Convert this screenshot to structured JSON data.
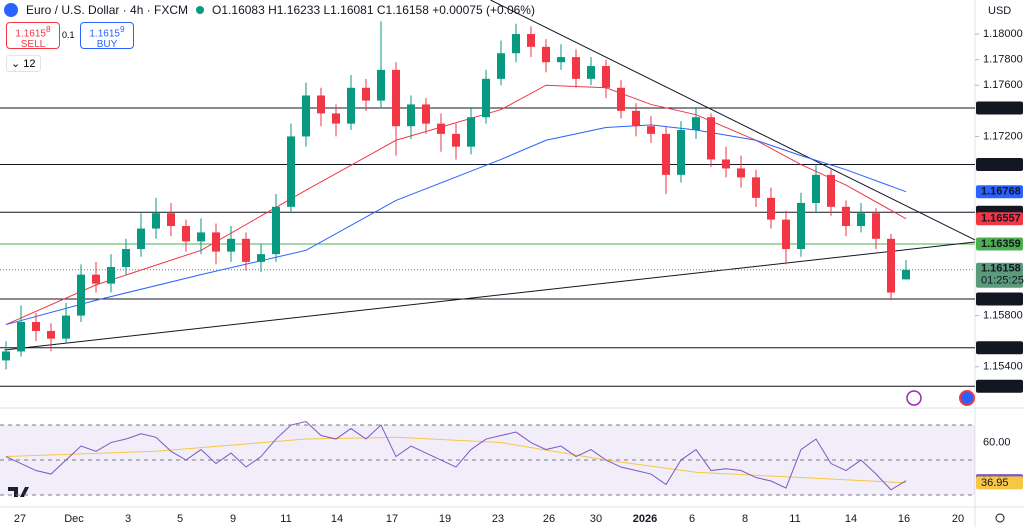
{
  "header": {
    "symbol": "Euro / U.S. Dollar · 4h · FXCM",
    "ohlc_text": "O1.16083 H1.16233 L1.16081 C1.16158 +0.00075 (+0.06%)",
    "sell_price": "1.1615",
    "sell_pip": "8",
    "sell_label": "SELL",
    "spread": "0.1",
    "buy_price": "1.1615",
    "buy_pip": "9",
    "buy_label": "BUY",
    "interval_count": "12",
    "currency": "USD",
    "countdown": "01:25:25"
  },
  "chart_data": {
    "type": "candlestick",
    "up_color": "#089981",
    "down_color": "#f23645",
    "ylim": [
      1.15078,
      1.18266
    ],
    "yticks": [
      {
        "value": 1.18,
        "label": "1.18000"
      },
      {
        "value": 1.178,
        "label": "1.17800"
      },
      {
        "value": 1.176,
        "label": "1.17600"
      },
      {
        "value": 1.172,
        "label": "1.17200"
      },
      {
        "value": 1.158,
        "label": "1.15800"
      },
      {
        "value": 1.154,
        "label": "1.15400"
      }
    ],
    "time_labels": [
      "27",
      "Dec",
      "3",
      "5",
      "9",
      "11",
      "14",
      "17",
      "19",
      "23",
      "26",
      "30",
      "2026",
      "6",
      "8",
      "11",
      "14",
      "16",
      "20"
    ],
    "candles": [
      [
        1.1545,
        1.156,
        1.1538,
        1.1552
      ],
      [
        1.1552,
        1.1588,
        1.1548,
        1.1575
      ],
      [
        1.1575,
        1.1582,
        1.156,
        1.1568
      ],
      [
        1.1568,
        1.1574,
        1.1552,
        1.1562
      ],
      [
        1.1562,
        1.159,
        1.1558,
        1.158
      ],
      [
        1.158,
        1.162,
        1.1575,
        1.1612
      ],
      [
        1.1612,
        1.1622,
        1.1598,
        1.1605
      ],
      [
        1.1605,
        1.1628,
        1.1598,
        1.1618
      ],
      [
        1.1618,
        1.164,
        1.1612,
        1.1632
      ],
      [
        1.1632,
        1.166,
        1.1626,
        1.1648
      ],
      [
        1.1648,
        1.1672,
        1.164,
        1.166
      ],
      [
        1.166,
        1.1668,
        1.1642,
        1.165
      ],
      [
        1.165,
        1.1655,
        1.163,
        1.1638
      ],
      [
        1.1638,
        1.1656,
        1.1628,
        1.1645
      ],
      [
        1.1645,
        1.1652,
        1.162,
        1.163
      ],
      [
        1.163,
        1.165,
        1.1622,
        1.164
      ],
      [
        1.164,
        1.1645,
        1.1615,
        1.1622
      ],
      [
        1.1622,
        1.1636,
        1.1614,
        1.1628
      ],
      [
        1.1628,
        1.1675,
        1.1622,
        1.1665
      ],
      [
        1.1665,
        1.173,
        1.166,
        1.172
      ],
      [
        1.172,
        1.1762,
        1.1712,
        1.1752
      ],
      [
        1.1752,
        1.1758,
        1.1728,
        1.1738
      ],
      [
        1.1738,
        1.1745,
        1.172,
        1.173
      ],
      [
        1.173,
        1.1768,
        1.1725,
        1.1758
      ],
      [
        1.1758,
        1.1765,
        1.174,
        1.1748
      ],
      [
        1.1748,
        1.181,
        1.1742,
        1.1772
      ],
      [
        1.1772,
        1.1778,
        1.1705,
        1.1728
      ],
      [
        1.1728,
        1.1752,
        1.1718,
        1.1745
      ],
      [
        1.1745,
        1.175,
        1.1722,
        1.173
      ],
      [
        1.173,
        1.1738,
        1.1708,
        1.1722
      ],
      [
        1.1722,
        1.173,
        1.1702,
        1.1712
      ],
      [
        1.1712,
        1.1742,
        1.1706,
        1.1735
      ],
      [
        1.1735,
        1.1772,
        1.173,
        1.1765
      ],
      [
        1.1765,
        1.1795,
        1.176,
        1.1785
      ],
      [
        1.1785,
        1.1808,
        1.1778,
        1.18
      ],
      [
        1.18,
        1.1806,
        1.1782,
        1.179
      ],
      [
        1.179,
        1.1796,
        1.177,
        1.1778
      ],
      [
        1.1778,
        1.1792,
        1.1772,
        1.1782
      ],
      [
        1.1782,
        1.1788,
        1.1758,
        1.1765
      ],
      [
        1.1765,
        1.1782,
        1.176,
        1.1775
      ],
      [
        1.1775,
        1.178,
        1.175,
        1.1758
      ],
      [
        1.1758,
        1.1764,
        1.1734,
        1.174
      ],
      [
        1.174,
        1.1746,
        1.172,
        1.1728
      ],
      [
        1.1728,
        1.1736,
        1.1715,
        1.1722
      ],
      [
        1.1722,
        1.1728,
        1.1675,
        1.169
      ],
      [
        1.169,
        1.1732,
        1.1684,
        1.1725
      ],
      [
        1.1725,
        1.1742,
        1.1718,
        1.1735
      ],
      [
        1.1735,
        1.1738,
        1.1696,
        1.1702
      ],
      [
        1.1702,
        1.1712,
        1.1688,
        1.1695
      ],
      [
        1.1695,
        1.1705,
        1.168,
        1.1688
      ],
      [
        1.1688,
        1.1694,
        1.1665,
        1.1672
      ],
      [
        1.1672,
        1.168,
        1.1648,
        1.1655
      ],
      [
        1.1655,
        1.1662,
        1.162,
        1.1632
      ],
      [
        1.1632,
        1.1676,
        1.1626,
        1.1668
      ],
      [
        1.1668,
        1.1698,
        1.166,
        1.169
      ],
      [
        1.169,
        1.1694,
        1.1658,
        1.1665
      ],
      [
        1.1665,
        1.167,
        1.1642,
        1.165
      ],
      [
        1.165,
        1.1668,
        1.1645,
        1.166
      ],
      [
        1.166,
        1.1664,
        1.1632,
        1.164
      ],
      [
        1.164,
        1.1644,
        1.1592,
        1.1598
      ],
      [
        1.16083,
        1.16233,
        1.16081,
        1.16158
      ]
    ],
    "levels": [
      {
        "value": 1.17422,
        "color": "#131722"
      },
      {
        "value": 1.16981,
        "color": "#131722"
      },
      {
        "value": 1.16608,
        "color": "#131722"
      },
      {
        "value": 1.16359,
        "color": "#4caf50"
      },
      {
        "value": 1.1593,
        "color": "#131722"
      },
      {
        "value": 1.15549,
        "color": "#131722"
      },
      {
        "value": 1.15248,
        "color": "#131722"
      }
    ],
    "moving_averages": [
      {
        "color": "#f23645",
        "x": [
          0,
          6,
          13,
          20,
          26,
          33,
          36,
          40,
          43,
          46,
          50,
          53,
          56,
          60
        ],
        "values": [
          1.1573,
          1.1604,
          1.1631,
          1.1678,
          1.1717,
          1.1741,
          1.176,
          1.1758,
          1.1745,
          1.1737,
          1.1717,
          1.1698,
          1.1682,
          1.16557
        ]
      },
      {
        "color": "#2962ff",
        "x": [
          0,
          6,
          13,
          20,
          26,
          33,
          36,
          40,
          43,
          46,
          50,
          53,
          56,
          60
        ],
        "values": [
          1.1573,
          1.1592,
          1.1612,
          1.1631,
          1.167,
          1.1702,
          1.1717,
          1.1727,
          1.1729,
          1.1725,
          1.1717,
          1.1705,
          1.1694,
          1.16768
        ]
      }
    ],
    "trendlines": [
      {
        "x": [
          32.3,
          64.6
        ],
        "values": [
          1.18266,
          1.16391
        ]
      },
      {
        "x": [
          -0.1,
          64.6
        ],
        "values": [
          1.15531,
          1.16375
        ]
      }
    ],
    "rsi": {
      "color": "#7e57c2",
      "ma_color": "#f7c744",
      "ylim": [
        24.3,
        78.6
      ],
      "levels": [
        70,
        50,
        30
      ],
      "yticks": [
        {
          "value": 60,
          "label": "60.00"
        }
      ],
      "values": [
        52,
        48,
        44,
        42,
        50,
        58,
        55,
        60,
        62,
        65,
        63,
        55,
        50,
        56,
        48,
        54,
        46,
        52,
        62,
        70,
        72,
        64,
        62,
        68,
        62,
        70,
        52,
        58,
        54,
        50,
        46,
        56,
        62,
        64,
        66,
        60,
        56,
        58,
        52,
        56,
        50,
        46,
        44,
        42,
        36,
        50,
        56,
        44,
        45,
        44,
        40,
        38,
        34,
        56,
        62,
        48,
        44,
        50,
        42,
        33,
        38.22
      ],
      "ma_x": [
        0,
        10,
        20,
        26,
        33,
        40,
        46,
        53,
        60
      ],
      "ma_values": [
        52,
        55,
        62,
        63,
        60,
        50,
        43,
        40,
        36.95
      ]
    }
  }
}
